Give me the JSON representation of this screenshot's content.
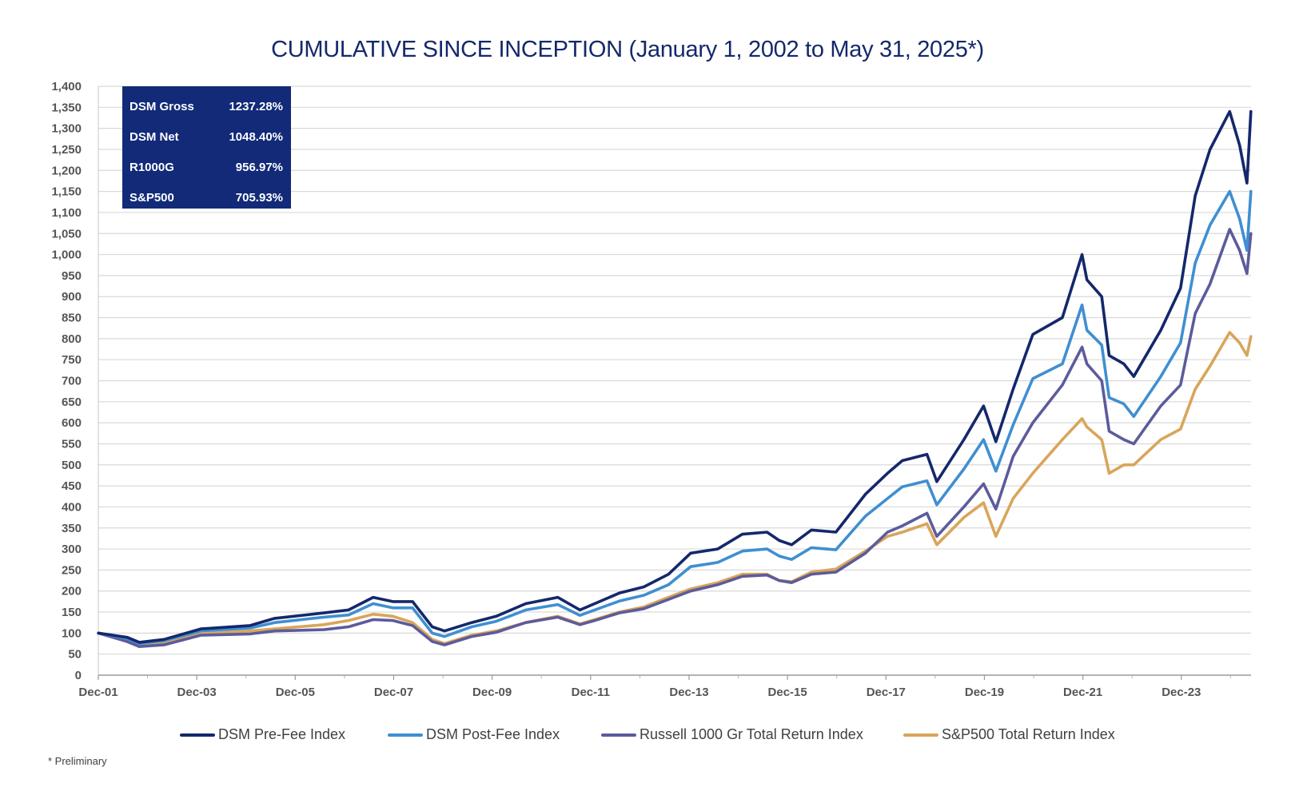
{
  "chart_data": {
    "type": "line",
    "title": "CUMULATIVE SINCE INCEPTION (January 1, 2002 to May 31, 2025*)",
    "xlabel": "",
    "ylabel": "",
    "ylim": [
      0,
      1400
    ],
    "y_ticks": [
      "0",
      "50",
      "100",
      "150",
      "200",
      "250",
      "300",
      "350",
      "400",
      "450",
      "500",
      "550",
      "600",
      "650",
      "700",
      "750",
      "800",
      "850",
      "900",
      "950",
      "1,000",
      "1,050",
      "1,100",
      "1,150",
      "1,200",
      "1,250",
      "1,300",
      "1,350",
      "1,400"
    ],
    "x_ticks": [
      "Dec-01",
      "Dec-03",
      "Dec-05",
      "Dec-07",
      "Dec-09",
      "Dec-11",
      "Dec-13",
      "Dec-15",
      "Dec-17",
      "Dec-19",
      "Dec-21",
      "Dec-23"
    ],
    "x_range": [
      2001.917,
      2025.333
    ],
    "grid": true,
    "legend_position": "bottom",
    "series": [
      {
        "name": "DSM Pre-Fee Index",
        "color": "#14286b",
        "points": [
          [
            2001.92,
            100
          ],
          [
            2002.5,
            90
          ],
          [
            2002.75,
            78
          ],
          [
            2003.25,
            85
          ],
          [
            2004.0,
            110
          ],
          [
            2005.0,
            118
          ],
          [
            2005.5,
            135
          ],
          [
            2006.5,
            148
          ],
          [
            2007.0,
            155
          ],
          [
            2007.5,
            185
          ],
          [
            2007.9,
            175
          ],
          [
            2008.3,
            175
          ],
          [
            2008.7,
            115
          ],
          [
            2008.95,
            105
          ],
          [
            2009.5,
            125
          ],
          [
            2010.0,
            140
          ],
          [
            2010.6,
            170
          ],
          [
            2011.25,
            185
          ],
          [
            2011.7,
            155
          ],
          [
            2012.0,
            170
          ],
          [
            2012.5,
            195
          ],
          [
            2013.0,
            210
          ],
          [
            2013.5,
            240
          ],
          [
            2013.95,
            290
          ],
          [
            2014.5,
            300
          ],
          [
            2015.0,
            335
          ],
          [
            2015.5,
            340
          ],
          [
            2015.75,
            320
          ],
          [
            2016.0,
            310
          ],
          [
            2016.4,
            345
          ],
          [
            2016.9,
            340
          ],
          [
            2017.5,
            430
          ],
          [
            2017.95,
            480
          ],
          [
            2018.25,
            510
          ],
          [
            2018.75,
            525
          ],
          [
            2018.95,
            460
          ],
          [
            2019.5,
            560
          ],
          [
            2019.9,
            640
          ],
          [
            2020.15,
            555
          ],
          [
            2020.5,
            680
          ],
          [
            2020.9,
            810
          ],
          [
            2021.5,
            850
          ],
          [
            2021.9,
            1000
          ],
          [
            2022.0,
            940
          ],
          [
            2022.3,
            900
          ],
          [
            2022.45,
            760
          ],
          [
            2022.75,
            740
          ],
          [
            2022.95,
            710
          ],
          [
            2023.5,
            820
          ],
          [
            2023.9,
            920
          ],
          [
            2024.2,
            1140
          ],
          [
            2024.5,
            1250
          ],
          [
            2024.9,
            1340
          ],
          [
            2025.1,
            1260
          ],
          [
            2025.25,
            1170
          ],
          [
            2025.33,
            1340
          ]
        ]
      },
      {
        "name": "DSM Post-Fee Index",
        "color": "#3f8fd1",
        "points": [
          [
            2001.92,
            100
          ],
          [
            2002.5,
            87
          ],
          [
            2002.75,
            75
          ],
          [
            2003.25,
            82
          ],
          [
            2004.0,
            105
          ],
          [
            2005.0,
            112
          ],
          [
            2005.5,
            125
          ],
          [
            2006.5,
            138
          ],
          [
            2007.0,
            143
          ],
          [
            2007.5,
            170
          ],
          [
            2007.9,
            160
          ],
          [
            2008.3,
            160
          ],
          [
            2008.7,
            100
          ],
          [
            2008.95,
            92
          ],
          [
            2009.5,
            115
          ],
          [
            2010.0,
            128
          ],
          [
            2010.6,
            155
          ],
          [
            2011.25,
            168
          ],
          [
            2011.7,
            142
          ],
          [
            2012.0,
            155
          ],
          [
            2012.5,
            176
          ],
          [
            2013.0,
            190
          ],
          [
            2013.5,
            215
          ],
          [
            2013.95,
            258
          ],
          [
            2014.5,
            268
          ],
          [
            2015.0,
            295
          ],
          [
            2015.5,
            300
          ],
          [
            2015.75,
            283
          ],
          [
            2016.0,
            275
          ],
          [
            2016.4,
            303
          ],
          [
            2016.9,
            298
          ],
          [
            2017.5,
            378
          ],
          [
            2017.95,
            420
          ],
          [
            2018.25,
            448
          ],
          [
            2018.75,
            462
          ],
          [
            2018.95,
            405
          ],
          [
            2019.5,
            490
          ],
          [
            2019.9,
            560
          ],
          [
            2020.15,
            485
          ],
          [
            2020.5,
            595
          ],
          [
            2020.9,
            705
          ],
          [
            2021.5,
            740
          ],
          [
            2021.9,
            880
          ],
          [
            2022.0,
            820
          ],
          [
            2022.3,
            785
          ],
          [
            2022.45,
            660
          ],
          [
            2022.75,
            645
          ],
          [
            2022.95,
            615
          ],
          [
            2023.5,
            710
          ],
          [
            2023.9,
            790
          ],
          [
            2024.2,
            980
          ],
          [
            2024.5,
            1070
          ],
          [
            2024.9,
            1150
          ],
          [
            2025.1,
            1085
          ],
          [
            2025.25,
            1010
          ],
          [
            2025.33,
            1150
          ]
        ]
      },
      {
        "name": "Russell 1000 Gr Total Return Index",
        "color": "#5c5b9c",
        "points": [
          [
            2001.92,
            100
          ],
          [
            2002.5,
            80
          ],
          [
            2002.75,
            68
          ],
          [
            2003.25,
            72
          ],
          [
            2004.0,
            95
          ],
          [
            2005.0,
            98
          ],
          [
            2005.5,
            105
          ],
          [
            2006.5,
            108
          ],
          [
            2007.0,
            115
          ],
          [
            2007.5,
            132
          ],
          [
            2007.9,
            130
          ],
          [
            2008.3,
            118
          ],
          [
            2008.7,
            80
          ],
          [
            2008.95,
            72
          ],
          [
            2009.5,
            92
          ],
          [
            2010.0,
            102
          ],
          [
            2010.6,
            125
          ],
          [
            2011.25,
            138
          ],
          [
            2011.7,
            120
          ],
          [
            2012.0,
            130
          ],
          [
            2012.5,
            148
          ],
          [
            2013.0,
            158
          ],
          [
            2013.5,
            180
          ],
          [
            2013.95,
            200
          ],
          [
            2014.5,
            215
          ],
          [
            2015.0,
            235
          ],
          [
            2015.5,
            238
          ],
          [
            2015.75,
            225
          ],
          [
            2016.0,
            220
          ],
          [
            2016.4,
            240
          ],
          [
            2016.9,
            245
          ],
          [
            2017.5,
            290
          ],
          [
            2017.95,
            340
          ],
          [
            2018.25,
            355
          ],
          [
            2018.75,
            385
          ],
          [
            2018.95,
            330
          ],
          [
            2019.5,
            400
          ],
          [
            2019.9,
            455
          ],
          [
            2020.15,
            395
          ],
          [
            2020.5,
            520
          ],
          [
            2020.9,
            600
          ],
          [
            2021.5,
            690
          ],
          [
            2021.9,
            780
          ],
          [
            2022.0,
            740
          ],
          [
            2022.3,
            700
          ],
          [
            2022.45,
            580
          ],
          [
            2022.75,
            560
          ],
          [
            2022.95,
            550
          ],
          [
            2023.5,
            640
          ],
          [
            2023.9,
            690
          ],
          [
            2024.2,
            860
          ],
          [
            2024.5,
            930
          ],
          [
            2024.9,
            1060
          ],
          [
            2025.1,
            1010
          ],
          [
            2025.25,
            955
          ],
          [
            2025.33,
            1050
          ]
        ]
      },
      {
        "name": "S&P500 Total Return Index",
        "color": "#d9a55a",
        "points": [
          [
            2001.92,
            100
          ],
          [
            2002.5,
            85
          ],
          [
            2002.75,
            72
          ],
          [
            2003.25,
            76
          ],
          [
            2004.0,
            98
          ],
          [
            2005.0,
            105
          ],
          [
            2005.5,
            110
          ],
          [
            2006.5,
            120
          ],
          [
            2007.0,
            130
          ],
          [
            2007.5,
            145
          ],
          [
            2007.9,
            140
          ],
          [
            2008.3,
            125
          ],
          [
            2008.7,
            85
          ],
          [
            2008.95,
            75
          ],
          [
            2009.5,
            95
          ],
          [
            2010.0,
            105
          ],
          [
            2010.6,
            125
          ],
          [
            2011.25,
            140
          ],
          [
            2011.7,
            122
          ],
          [
            2012.0,
            132
          ],
          [
            2012.5,
            150
          ],
          [
            2013.0,
            162
          ],
          [
            2013.5,
            185
          ],
          [
            2013.95,
            205
          ],
          [
            2014.5,
            220
          ],
          [
            2015.0,
            240
          ],
          [
            2015.5,
            240
          ],
          [
            2015.75,
            225
          ],
          [
            2016.0,
            222
          ],
          [
            2016.4,
            245
          ],
          [
            2016.9,
            252
          ],
          [
            2017.5,
            295
          ],
          [
            2017.95,
            330
          ],
          [
            2018.25,
            340
          ],
          [
            2018.75,
            360
          ],
          [
            2018.95,
            310
          ],
          [
            2019.5,
            375
          ],
          [
            2019.9,
            410
          ],
          [
            2020.15,
            330
          ],
          [
            2020.5,
            420
          ],
          [
            2020.9,
            480
          ],
          [
            2021.5,
            560
          ],
          [
            2021.9,
            610
          ],
          [
            2022.0,
            590
          ],
          [
            2022.3,
            560
          ],
          [
            2022.45,
            480
          ],
          [
            2022.75,
            500
          ],
          [
            2022.95,
            500
          ],
          [
            2023.5,
            560
          ],
          [
            2023.9,
            585
          ],
          [
            2024.2,
            680
          ],
          [
            2024.5,
            735
          ],
          [
            2024.9,
            815
          ],
          [
            2025.1,
            790
          ],
          [
            2025.25,
            760
          ],
          [
            2025.33,
            805
          ]
        ]
      }
    ]
  },
  "stats_box": {
    "rows": [
      {
        "label": "DSM Gross",
        "value": "1237.28%"
      },
      {
        "label": "DSM Net",
        "value": "1048.40%"
      },
      {
        "label": "R1000G",
        "value": "956.97%"
      },
      {
        "label": "S&P500",
        "value": "705.93%"
      }
    ],
    "background": "#122a78"
  },
  "footnote": "* Preliminary"
}
